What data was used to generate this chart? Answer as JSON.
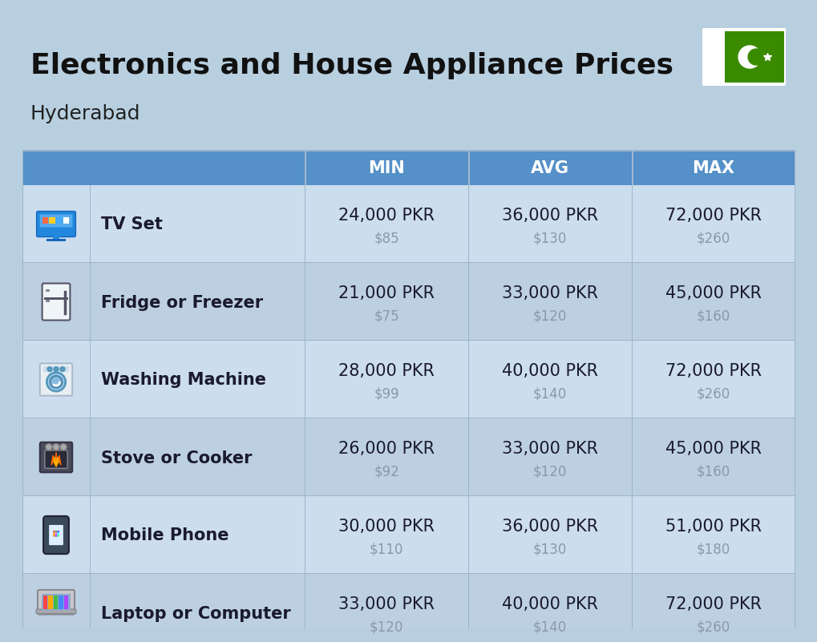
{
  "title": "Electronics and House Appliance Prices",
  "subtitle": "Hyderabad",
  "bg_color": "#b8cfe0",
  "header_color": "#5590c8",
  "header_text_color": "#ffffff",
  "row_even_color": "#ccdded",
  "row_odd_color": "#bdd0e2",
  "divider_color": "#9ab5cc",
  "cell_text_color": "#1a1a2e",
  "usd_text_color": "#8899aa",
  "flag_green": "#3a8a00",
  "columns": [
    "MIN",
    "AVG",
    "MAX"
  ],
  "items": [
    {
      "name": "TV Set",
      "min_pkr": "24,000 PKR",
      "min_usd": "$85",
      "avg_pkr": "36,000 PKR",
      "avg_usd": "$130",
      "max_pkr": "72,000 PKR",
      "max_usd": "$260"
    },
    {
      "name": "Fridge or Freezer",
      "min_pkr": "21,000 PKR",
      "min_usd": "$75",
      "avg_pkr": "33,000 PKR",
      "avg_usd": "$120",
      "max_pkr": "45,000 PKR",
      "max_usd": "$160"
    },
    {
      "name": "Washing Machine",
      "min_pkr": "28,000 PKR",
      "min_usd": "$99",
      "avg_pkr": "40,000 PKR",
      "avg_usd": "$140",
      "max_pkr": "72,000 PKR",
      "max_usd": "$260"
    },
    {
      "name": "Stove or Cooker",
      "min_pkr": "26,000 PKR",
      "min_usd": "$92",
      "avg_pkr": "33,000 PKR",
      "avg_usd": "$120",
      "max_pkr": "45,000 PKR",
      "max_usd": "$160"
    },
    {
      "name": "Mobile Phone",
      "min_pkr": "30,000 PKR",
      "min_usd": "$110",
      "avg_pkr": "36,000 PKR",
      "avg_usd": "$130",
      "max_pkr": "51,000 PKR",
      "max_usd": "$180"
    },
    {
      "name": "Laptop or Computer",
      "min_pkr": "33,000 PKR",
      "min_usd": "$120",
      "avg_pkr": "40,000 PKR",
      "avg_usd": "$140",
      "max_pkr": "72,000 PKR",
      "max_usd": "$260"
    }
  ]
}
